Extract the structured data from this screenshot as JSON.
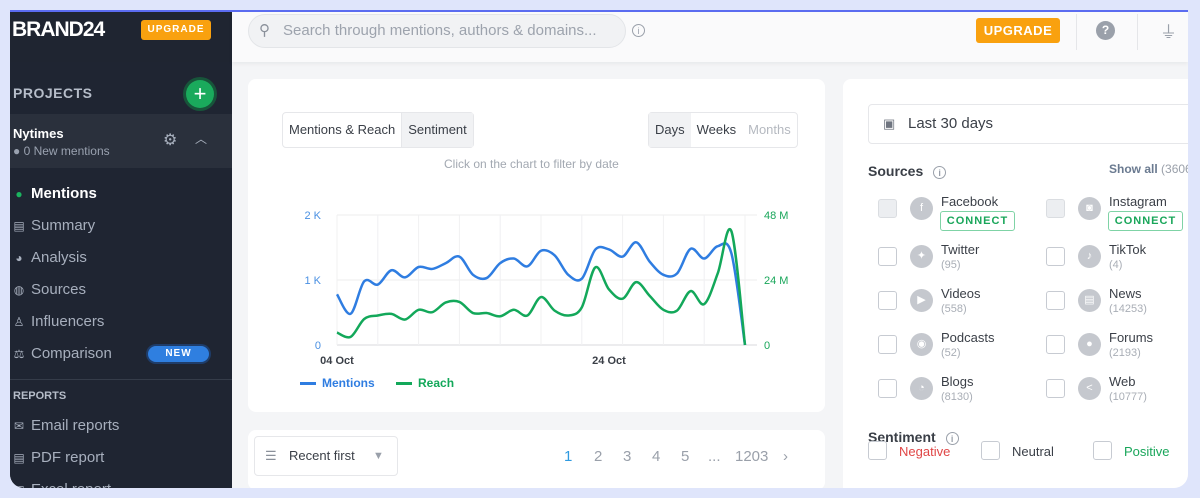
{
  "brand": {
    "logo": "BRAND24",
    "upgrade": "UPGRADE"
  },
  "sidebar": {
    "projects_label": "PROJECTS",
    "add": "+",
    "project": {
      "name": "Nytimes",
      "new_mentions": "● 0  New mentions"
    },
    "nav": [
      {
        "label": "Mentions",
        "icon": "speech-bubble"
      },
      {
        "label": "Summary",
        "icon": "document"
      },
      {
        "label": "Analysis",
        "icon": "pie-chart"
      },
      {
        "label": "Sources",
        "icon": "globe"
      },
      {
        "label": "Influencers",
        "icon": "person"
      },
      {
        "label": "Comparison",
        "icon": "scales",
        "badge": "NEW"
      }
    ],
    "reports_label": "REPORTS",
    "reports": [
      {
        "label": "Email reports",
        "icon": "envelope"
      },
      {
        "label": "PDF report",
        "icon": "pdf"
      },
      {
        "label": "Excel report",
        "icon": "excel"
      }
    ]
  },
  "topbar": {
    "search_placeholder": "Search through mentions, authors & domains...",
    "upgrade": "UPGRADE",
    "help": "?"
  },
  "chart_panel": {
    "tabs": [
      "Mentions & Reach",
      "Sentiment"
    ],
    "active_tab": "Sentiment",
    "periods": [
      "Days",
      "Weeks",
      "Months"
    ],
    "hint": "Click on the chart to filter by date"
  },
  "chart_data": {
    "type": "line",
    "x_tick_labels": [
      "04 Oct",
      "24 Oct"
    ],
    "x_start": "04 Oct",
    "x_end": "03 Nov",
    "y_left": {
      "ticks": [
        "0",
        "1 K",
        "2 K"
      ],
      "range": [
        0,
        2000
      ]
    },
    "y_right": {
      "ticks": [
        "0",
        "24 M",
        "48 M"
      ],
      "range": [
        0,
        48000000
      ]
    },
    "grid": true,
    "legend_position": "bottom-left",
    "series": [
      {
        "name": "Mentions",
        "axis": "left",
        "color": "#2f7de1",
        "values": [
          780,
          480,
          980,
          930,
          1150,
          1040,
          1200,
          1170,
          1260,
          1360,
          1080,
          1030,
          1260,
          1330,
          1210,
          1450,
          1380,
          1080,
          1020,
          1470,
          1470,
          1360,
          1580,
          1280,
          1080,
          1100,
          1480,
          1330,
          1520,
          1410,
          0
        ]
      },
      {
        "name": "Reach",
        "axis": "right",
        "color": "#13a85a",
        "values": [
          4600000,
          3000000,
          9600000,
          10900000,
          11500000,
          9400000,
          13000000,
          12100000,
          15700000,
          15900000,
          11800000,
          11800000,
          10600000,
          13000000,
          10900000,
          17700000,
          12700000,
          10900000,
          13900000,
          28700000,
          20500000,
          17100000,
          23200000,
          18100000,
          13000000,
          12700000,
          19900000,
          15100000,
          26500000,
          42000000,
          0
        ]
      }
    ]
  },
  "list": {
    "sort": "Recent first",
    "pages": [
      "1",
      "2",
      "3",
      "4",
      "5",
      "...",
      "1203"
    ],
    "current_page": "1",
    "next": "›"
  },
  "filters": {
    "date_range": "Last 30 days",
    "sources_title": "Sources",
    "show_all": "Show all",
    "show_all_count": "(3606",
    "sources": [
      {
        "name": "Facebook",
        "connect": "CONNECT",
        "icon": "facebook"
      },
      {
        "name": "Instagram",
        "connect": "CONNECT",
        "icon": "instagram"
      },
      {
        "name": "Twitter",
        "count": "(95)",
        "icon": "twitter"
      },
      {
        "name": "TikTok",
        "count": "(4)",
        "icon": "tiktok"
      },
      {
        "name": "Videos",
        "count": "(558)",
        "icon": "play"
      },
      {
        "name": "News",
        "count": "(14253)",
        "icon": "newspaper"
      },
      {
        "name": "Podcasts",
        "count": "(52)",
        "icon": "podcast"
      },
      {
        "name": "Forums",
        "count": "(2193)",
        "icon": "chat"
      },
      {
        "name": "Blogs",
        "count": "(8130)",
        "icon": "rss"
      },
      {
        "name": "Web",
        "count": "(10777)",
        "icon": "share"
      }
    ],
    "sentiment_title": "Sentiment",
    "sentiment": [
      {
        "label": "Negative",
        "color": "#e04646"
      },
      {
        "label": "Neutral",
        "color": "#3a3f47"
      },
      {
        "label": "Positive",
        "color": "#19a65a"
      }
    ]
  }
}
